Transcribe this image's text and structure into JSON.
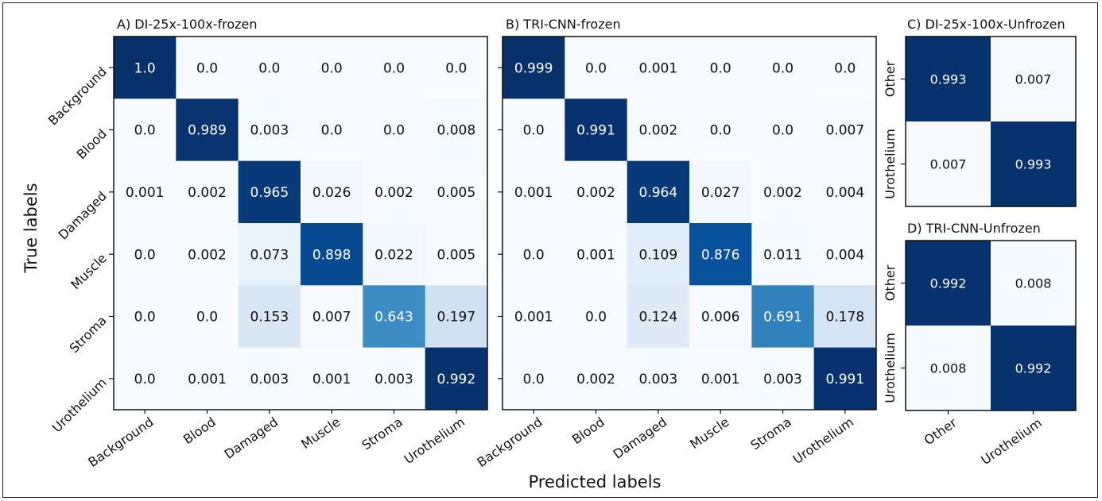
{
  "figure": {
    "ylabel": "True labels",
    "xlabel": "Predicted labels"
  },
  "chart_data": [
    {
      "type": "heatmap",
      "title": "A) DI-25x-100x-frozen",
      "xlabel": "Predicted labels",
      "ylabel": "True labels",
      "x_categories": [
        "Background",
        "Blood",
        "Damaged",
        "Muscle",
        "Stroma",
        "Urothelium"
      ],
      "y_categories": [
        "Background",
        "Blood",
        "Damaged",
        "Muscle",
        "Stroma",
        "Urothelium"
      ],
      "values": [
        [
          1.0,
          0.0,
          0.0,
          0.0,
          0.0,
          0.0
        ],
        [
          0.0,
          0.989,
          0.003,
          0.0,
          0.0,
          0.008
        ],
        [
          0.001,
          0.002,
          0.965,
          0.026,
          0.002,
          0.005
        ],
        [
          0.0,
          0.002,
          0.073,
          0.898,
          0.022,
          0.005
        ],
        [
          0.0,
          0.0,
          0.153,
          0.007,
          0.643,
          0.197
        ],
        [
          0.0,
          0.001,
          0.003,
          0.001,
          0.003,
          0.992
        ]
      ],
      "value_labels": [
        [
          "1.0",
          "0.0",
          "0.0",
          "0.0",
          "0.0",
          "0.0"
        ],
        [
          "0.0",
          "0.989",
          "0.003",
          "0.0",
          "0.0",
          "0.008"
        ],
        [
          "0.001",
          "0.002",
          "0.965",
          "0.026",
          "0.002",
          "0.005"
        ],
        [
          "0.0",
          "0.002",
          "0.073",
          "0.898",
          "0.022",
          "0.005"
        ],
        [
          "0.0",
          "0.0",
          "0.153",
          "0.007",
          "0.643",
          "0.197"
        ],
        [
          "0.0",
          "0.001",
          "0.003",
          "0.001",
          "0.003",
          "0.992"
        ]
      ],
      "colormap": "Blues",
      "value_range": [
        0,
        1
      ]
    },
    {
      "type": "heatmap",
      "title": "B) TRI-CNN-frozen",
      "xlabel": "Predicted labels",
      "x_categories": [
        "Background",
        "Blood",
        "Damaged",
        "Muscle",
        "Stroma",
        "Urothelium"
      ],
      "y_categories": [
        "Background",
        "Blood",
        "Damaged",
        "Muscle",
        "Stroma",
        "Urothelium"
      ],
      "values": [
        [
          0.999,
          0.0,
          0.001,
          0.0,
          0.0,
          0.0
        ],
        [
          0.0,
          0.991,
          0.002,
          0.0,
          0.0,
          0.007
        ],
        [
          0.001,
          0.002,
          0.964,
          0.027,
          0.002,
          0.004
        ],
        [
          0.0,
          0.001,
          0.109,
          0.876,
          0.011,
          0.004
        ],
        [
          0.001,
          0.0,
          0.124,
          0.006,
          0.691,
          0.178
        ],
        [
          0.0,
          0.002,
          0.003,
          0.001,
          0.003,
          0.991
        ]
      ],
      "value_labels": [
        [
          "0.999",
          "0.0",
          "0.001",
          "0.0",
          "0.0",
          "0.0"
        ],
        [
          "0.0",
          "0.991",
          "0.002",
          "0.0",
          "0.0",
          "0.007"
        ],
        [
          "0.001",
          "0.002",
          "0.964",
          "0.027",
          "0.002",
          "0.004"
        ],
        [
          "0.0",
          "0.001",
          "0.109",
          "0.876",
          "0.011",
          "0.004"
        ],
        [
          "0.001",
          "0.0",
          "0.124",
          "0.006",
          "0.691",
          "0.178"
        ],
        [
          "0.0",
          "0.002",
          "0.003",
          "0.001",
          "0.003",
          "0.991"
        ]
      ],
      "colormap": "Blues",
      "value_range": [
        0,
        1
      ]
    },
    {
      "type": "heatmap",
      "title": "C) DI-25x-100x-Unfrozen",
      "x_categories": [
        "Other",
        "Urothelium"
      ],
      "y_categories": [
        "Other",
        "Urothelium"
      ],
      "values": [
        [
          0.993,
          0.007
        ],
        [
          0.007,
          0.993
        ]
      ],
      "value_labels": [
        [
          "0.993",
          "0.007"
        ],
        [
          "0.007",
          "0.993"
        ]
      ],
      "colormap": "Blues",
      "value_range": [
        0,
        1
      ]
    },
    {
      "type": "heatmap",
      "title": "D) TRI-CNN-Unfrozen",
      "x_categories": [
        "Other",
        "Urothelium"
      ],
      "y_categories": [
        "Other",
        "Urothelium"
      ],
      "values": [
        [
          0.992,
          0.008
        ],
        [
          0.008,
          0.992
        ]
      ],
      "value_labels": [
        [
          "0.992",
          "0.008"
        ],
        [
          "0.008",
          "0.992"
        ]
      ],
      "colormap": "Blues",
      "value_range": [
        0,
        1
      ]
    }
  ]
}
